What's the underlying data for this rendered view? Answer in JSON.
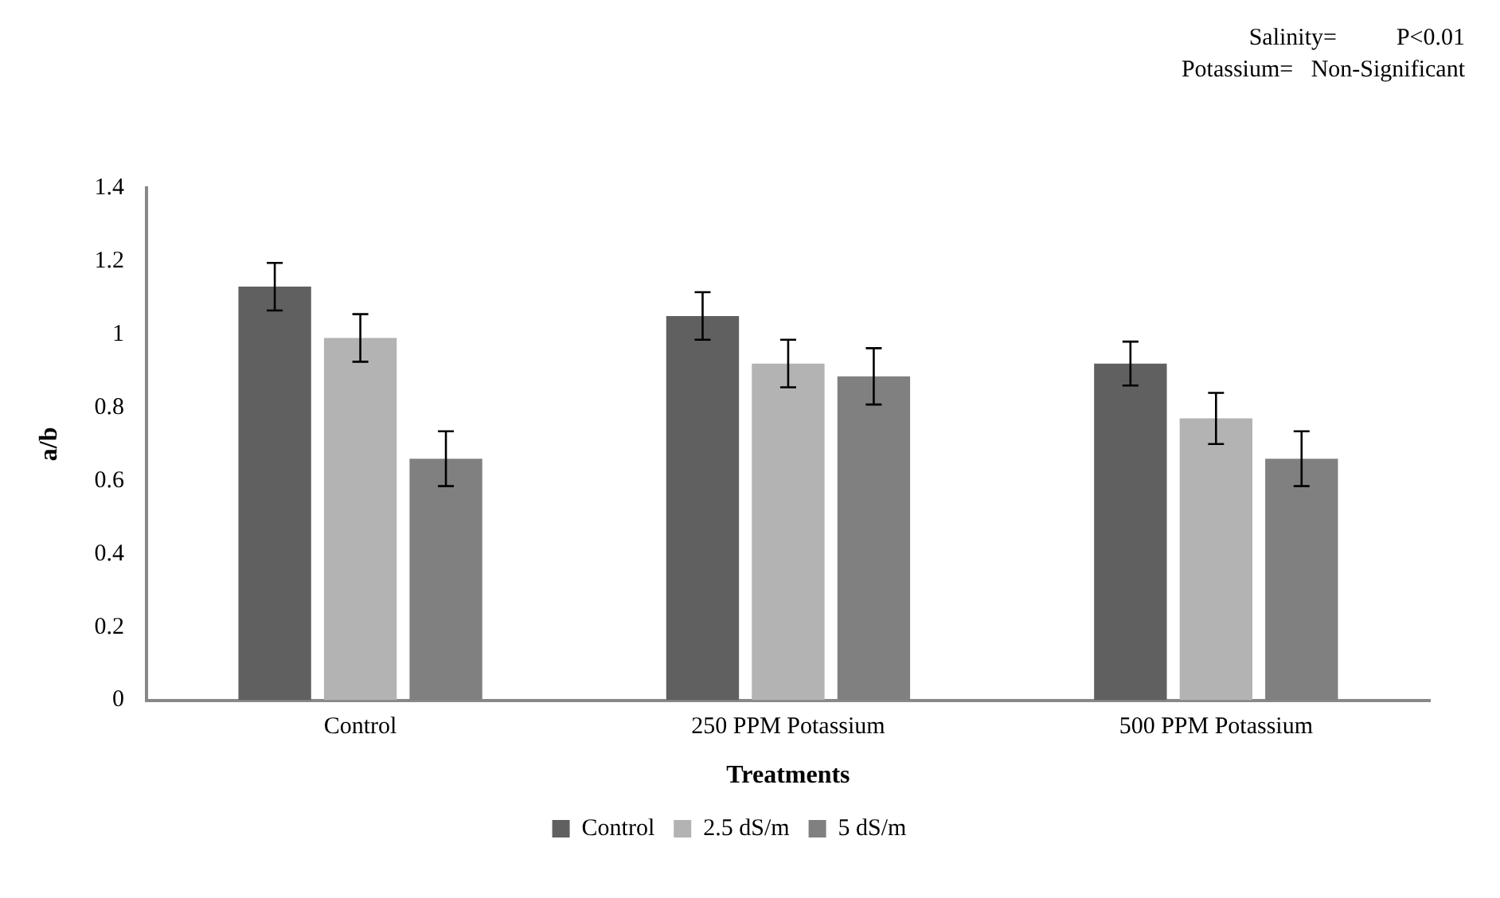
{
  "chart_data": {
    "type": "bar",
    "xlabel": "Treatments",
    "ylabel": "a/b",
    "annotations": [
      "Salinity=          P<0.01",
      "Potassium=   Non-Significant"
    ],
    "categories": [
      "Control",
      "250 PPM Potassium",
      "500 PPM Potassium"
    ],
    "series": [
      {
        "name": "Control",
        "color": "#606060",
        "values": [
          1.13,
          1.05,
          0.92
        ],
        "errors": [
          0.065,
          0.065,
          0.06
        ]
      },
      {
        "name": "2.5 dS/m",
        "color": "#b3b3b3",
        "values": [
          0.99,
          0.92,
          0.77
        ],
        "errors": [
          0.065,
          0.065,
          0.07
        ]
      },
      {
        "name": "5 dS/m",
        "color": "#808080",
        "values": [
          0.66,
          0.885,
          0.66
        ],
        "errors": [
          0.075,
          0.077,
          0.075
        ]
      }
    ],
    "ylim": [
      0,
      1.4
    ],
    "yticks": [
      0,
      0.2,
      0.4,
      0.6,
      0.8,
      1,
      1.2,
      1.4
    ],
    "grid": false,
    "legend": "bottom"
  }
}
